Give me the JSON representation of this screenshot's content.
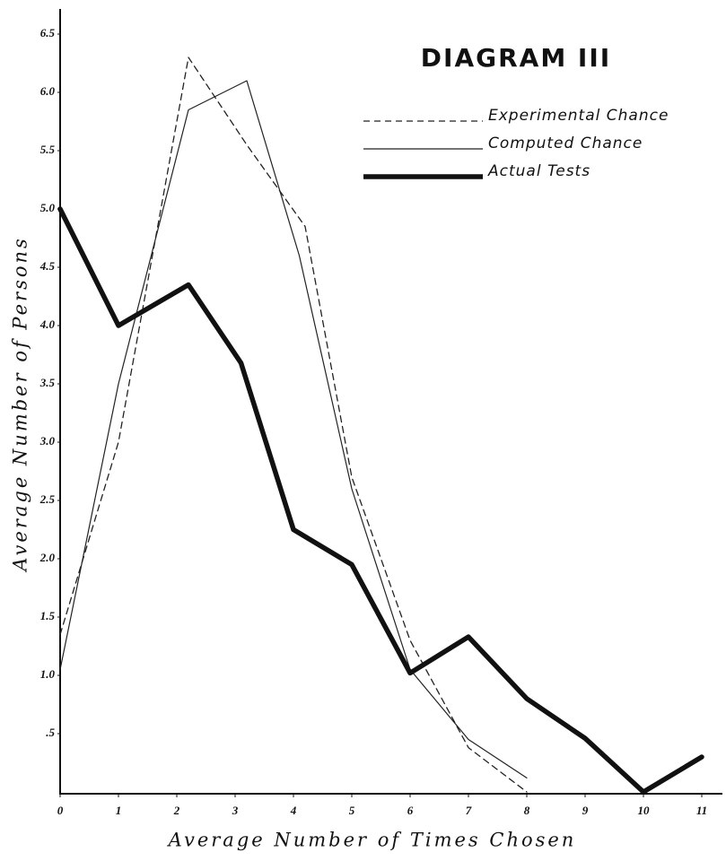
{
  "chart_data": {
    "type": "line",
    "title": "DIAGRAM III",
    "x_label": "Average Number of Times Chosen",
    "y_label": "Average Number of Persons",
    "xlim": [
      0,
      11.4
    ],
    "ylim": [
      0,
      6.6
    ],
    "xticks": [
      0,
      1,
      2,
      3,
      4,
      5,
      6,
      7,
      8,
      9,
      10,
      11
    ],
    "yticks": [
      {
        "value": 0.5,
        "label": ".5"
      },
      {
        "value": 1,
        "label": "1.0"
      },
      1.5,
      {
        "value": 2,
        "label": "2.0"
      },
      2.5,
      {
        "value": 3,
        "label": "3.0"
      },
      3.5,
      {
        "value": 4,
        "label": "4.0"
      },
      4.5,
      {
        "value": 5,
        "label": "5.0"
      },
      5.5,
      {
        "value": 6,
        "label": "6.0"
      },
      6.5
    ],
    "legend": "top-right",
    "series": [
      {
        "name": "Experimental Chance",
        "color": "#222",
        "style": "dashed",
        "x": [
          0,
          1,
          2.2,
          3.2,
          4.2,
          5,
          6,
          7,
          8
        ],
        "values": [
          1.35,
          3.0,
          6.3,
          5.55,
          4.85,
          2.7,
          1.3,
          0.38,
          0
        ]
      },
      {
        "name": "Computed Chance",
        "color": "#222",
        "style": "thin",
        "x": [
          0,
          1,
          2.2,
          3.2,
          4.1,
          5,
          6,
          7,
          8
        ],
        "values": [
          1.05,
          3.5,
          5.85,
          6.1,
          4.6,
          2.6,
          1.05,
          0.45,
          0.12
        ]
      },
      {
        "name": "Actual Tests",
        "color": "#111",
        "style": "thick",
        "x": [
          0,
          1,
          2.2,
          3.1,
          4,
          5,
          6,
          7,
          8,
          9,
          10,
          11
        ],
        "values": [
          5.0,
          4.0,
          4.35,
          3.68,
          2.25,
          1.95,
          1.02,
          1.33,
          0.8,
          0.46,
          0,
          0.3
        ]
      }
    ]
  }
}
